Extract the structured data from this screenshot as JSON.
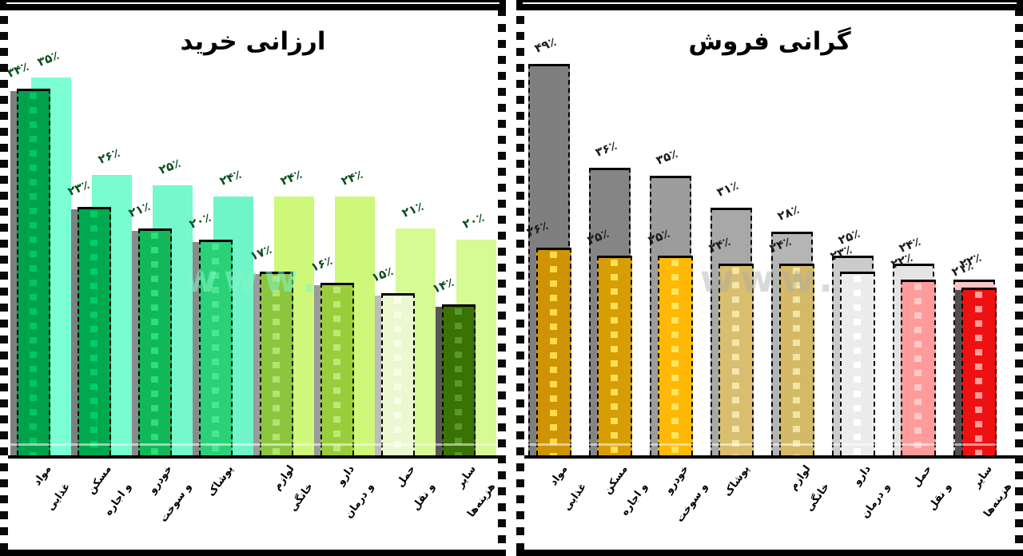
{
  "watermark": "www.",
  "left_chart": {
    "title": "ارزانی خرید",
    "label_color": "#0a4f1e",
    "scale_max": 40,
    "categories": [
      "مواد غذایی",
      "مسکن و اجاره",
      "خودرو و سوخت",
      "پوشاک",
      "لوازم خانگی",
      "دارو و درمان",
      "حمل و نقل",
      "سایر هزینه‌ها"
    ],
    "clusters": [
      {
        "front": {
          "label": "۳۴٪",
          "value": 34,
          "color": "#00A14B",
          "stripe": "#00C766",
          "shadow": "#7F7F7F"
        },
        "back": {
          "label": "۳۵٪",
          "value": 35,
          "color": "#7CFFD4"
        }
      },
      {
        "front": {
          "label": "۲۳٪",
          "value": 23,
          "color": "#00A84F",
          "stripe": "#00CE69",
          "shadow": "#7F7F7F"
        },
        "back": {
          "label": "۲۶٪",
          "value": 26,
          "color": "#78FCD0"
        }
      },
      {
        "front": {
          "label": "۲۱٪",
          "value": 21,
          "color": "#12B75A",
          "stripe": "#2BDF79",
          "shadow": "#8A8A8A"
        },
        "back": {
          "label": "۲۵٪",
          "value": 25,
          "color": "#74F8CC"
        }
      },
      {
        "front": {
          "label": "۲۰٪",
          "value": 20,
          "color": "#2BD178",
          "stripe": "#4BE693",
          "shadow": "#8A8A8A"
        },
        "back": {
          "label": "۲۴٪",
          "value": 24,
          "color": "#70F5C8"
        }
      },
      {
        "front": {
          "label": "۱۷٪",
          "value": 17,
          "color": "#8CC63F",
          "stripe": "#B4E36E",
          "shadow": "#9B9B9B"
        },
        "back": {
          "label": "۲۴٪",
          "value": 24,
          "color": "#CDF879"
        }
      },
      {
        "front": {
          "label": "۱۶٪",
          "value": 16,
          "color": "#9ACD3C",
          "stripe": "#BFE873",
          "shadow": "#9B9B9B"
        },
        "back": {
          "label": "۲۴٪",
          "value": 24,
          "color": "#CDF879"
        }
      },
      {
        "front": {
          "label": "۱۵٪",
          "value": 15,
          "color": "#EAF9CF",
          "stripe": "#F8FFE8",
          "shadow": "#BDBDBD"
        },
        "back": {
          "label": "۲۱٪",
          "value": 21,
          "color": "#D6FA94"
        }
      },
      {
        "front": {
          "label": "۱۴٪",
          "value": 14,
          "color": "#3A7203",
          "stripe": "#559A2B",
          "shadow": "#565656"
        },
        "back": {
          "label": "۲۰٪",
          "value": 20,
          "color": "#D6FA94"
        }
      }
    ]
  },
  "right_chart": {
    "title": "گرانی فروش",
    "label_color": "#1c1c1c",
    "scale_max": 54,
    "categories": [
      "مواد غذایی",
      "مسکن و اجاره",
      "خودرو و سوخت",
      "پوشاک",
      "لوازم خانگی",
      "دارو و درمان",
      "حمل و نقل",
      "سایر هزینه‌ها"
    ],
    "clusters": [
      {
        "front": {
          "label": "۲۶٪",
          "value": 26,
          "color": "#CE9403",
          "stripe": "#FFD84D",
          "shadow": null
        },
        "back": {
          "label": "۴۹٪",
          "value": 49,
          "color": "#7F7F7F"
        }
      },
      {
        "front": {
          "label": "۲۵٪",
          "value": 25,
          "color": "#D69E04",
          "stripe": "#FFDE55",
          "shadow": null
        },
        "back": {
          "label": "۳۶٪",
          "value": 36,
          "color": "#858585"
        }
      },
      {
        "front": {
          "label": "۲۵٪",
          "value": 25,
          "color": "#FFB806",
          "stripe": "#FFE45E",
          "shadow": null
        },
        "back": {
          "label": "۳۵٪",
          "value": 35,
          "color": "#9C9C9C"
        }
      },
      {
        "front": {
          "label": "۲۴٪",
          "value": 24,
          "color": "#D8BE6E",
          "stripe": "#F3E7A9",
          "shadow": null
        },
        "back": {
          "label": "۳۱٪",
          "value": 31,
          "color": "#A8A8A8"
        }
      },
      {
        "front": {
          "label": "۲۴٪",
          "value": 24,
          "color": "#D4BA68",
          "stripe": "#F1E5A5",
          "shadow": null
        },
        "back": {
          "label": "۲۸٪",
          "value": 28,
          "color": "#B5B5B5"
        }
      },
      {
        "front": {
          "label": "۲۳٪",
          "value": 23,
          "color": "#ECECEC",
          "stripe": "#FFFFFF",
          "shadow": null
        },
        "back": {
          "label": "۲۵٪",
          "value": 25,
          "color": "#CBCBCB"
        }
      },
      {
        "front": {
          "label": "۲۲٪",
          "value": 22,
          "color": "#FF9B9B",
          "stripe": "#FFC9C9",
          "shadow": null
        },
        "back": {
          "label": "۲۴٪",
          "value": 24,
          "color": "#E4E4E4"
        }
      },
      {
        "front": {
          "label": "۲۱٪",
          "value": 21,
          "color": "#EE1111",
          "stripe": "#FF9C9C",
          "shadow": "#4F4F4F"
        },
        "back": {
          "label": "۲۲٪",
          "value": 22,
          "color": "#FFC4C4"
        }
      }
    ]
  },
  "chart_data": [
    {
      "type": "bar",
      "title": "ارزانی خرید",
      "categories": [
        "مواد غذایی",
        "مسکن و اجاره",
        "خودرو و سوخت",
        "پوشاک",
        "لوازم خانگی",
        "دارو و درمان",
        "حمل و نقل",
        "سایر هزینه‌ها"
      ],
      "series": [
        {
          "name": "back",
          "values": [
            35,
            26,
            25,
            24,
            24,
            24,
            21,
            20
          ]
        },
        {
          "name": "front",
          "values": [
            34,
            23,
            21,
            20,
            17,
            16,
            15,
            14
          ]
        }
      ],
      "ylabel": "درصد",
      "ylim": [
        0,
        40
      ],
      "grid": false,
      "legend_position": "none"
    },
    {
      "type": "bar",
      "title": "گرانی فروش",
      "categories": [
        "مواد غذایی",
        "مسکن و اجاره",
        "خودرو و سوخت",
        "پوشاک",
        "لوازم خانگی",
        "دارو و درمان",
        "حمل و نقل",
        "سایر هزینه‌ها"
      ],
      "series": [
        {
          "name": "back",
          "values": [
            49,
            36,
            35,
            31,
            28,
            25,
            24,
            22
          ]
        },
        {
          "name": "front",
          "values": [
            26,
            25,
            25,
            24,
            24,
            23,
            22,
            21
          ]
        }
      ],
      "ylabel": "درصد",
      "ylim": [
        0,
        54
      ],
      "grid": false,
      "legend_position": "none"
    }
  ]
}
